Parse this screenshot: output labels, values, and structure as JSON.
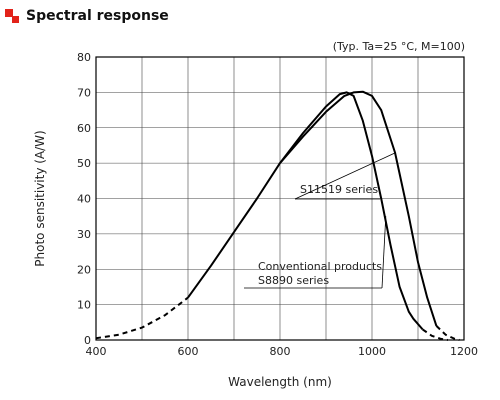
{
  "icon": "red-square-bullet-icon",
  "accent_color": "#e2231a",
  "chart_data": {
    "type": "line",
    "title": "Spectral response",
    "condition": "(Typ. Ta=25 °C, M=100)",
    "xlabel": "Wavelength (nm)",
    "ylabel": "Photo sensitivity (A/W)",
    "xlim": [
      400,
      1200
    ],
    "ylim": [
      0,
      80
    ],
    "xticks": [
      400,
      600,
      800,
      1000,
      1200
    ],
    "yticks": [
      0,
      10,
      20,
      30,
      40,
      50,
      60,
      70,
      80
    ],
    "grid": true,
    "series": [
      {
        "name": "S11519 series",
        "style": "solid",
        "x": [
          600,
          650,
          700,
          750,
          800,
          850,
          900,
          940,
          960,
          980,
          1000,
          1020,
          1050,
          1080,
          1100,
          1120,
          1140
        ],
        "y": [
          12,
          21,
          30.5,
          40,
          50,
          57.5,
          64.5,
          69,
          70,
          70.2,
          69,
          65,
          53,
          35,
          22,
          12,
          4
        ]
      },
      {
        "name": "S11519 series",
        "style": "dashed",
        "x": [
          400,
          450,
          500,
          550,
          600
        ],
        "y": [
          0.5,
          1.5,
          3.5,
          7,
          12
        ]
      },
      {
        "name": "S11519 series",
        "style": "dashed",
        "x": [
          1140,
          1160,
          1180,
          1190
        ],
        "y": [
          4,
          1.5,
          0.3,
          0
        ]
      },
      {
        "name": "Conventional products S8890 series",
        "style": "solid",
        "x": [
          800,
          850,
          900,
          930,
          945,
          960,
          980,
          1000,
          1020,
          1040,
          1060,
          1080,
          1090,
          1110
        ],
        "y": [
          50,
          58.5,
          66,
          69.5,
          70,
          69,
          62,
          52,
          40,
          27,
          15,
          8,
          6,
          3
        ]
      },
      {
        "name": "Conventional products S8890 series",
        "style": "dashed",
        "x": [
          1110,
          1130,
          1150,
          1165
        ],
        "y": [
          3,
          1.2,
          0.3,
          0
        ]
      }
    ],
    "annotations": [
      {
        "text": "S11519 series",
        "target": [
          1052,
          53
        ]
      },
      {
        "lines": [
          "Conventional products",
          "S8890 series"
        ],
        "target": [
          1030,
          35
        ]
      }
    ]
  }
}
